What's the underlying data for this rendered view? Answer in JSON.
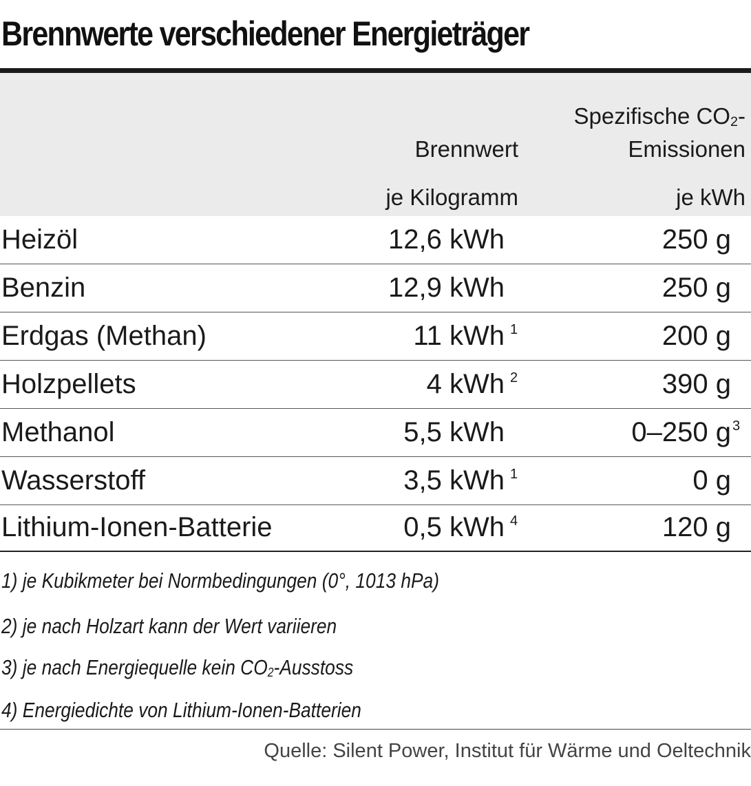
{
  "title": "Brennwerte verschiedener Energieträger",
  "header": {
    "brennwert_label": "Brennwert",
    "brennwert_unit": "je Kilogramm",
    "co2_label_line1": "Spezifische CO",
    "co2_sub": "2",
    "co2_label_dash": "-",
    "co2_label_line2": "Emissionen",
    "co2_unit": "je kWh"
  },
  "rows": [
    {
      "name": "Heizöl",
      "brennwert": "12,6 kWh",
      "note": "",
      "co2": "250 g",
      "co2_note": ""
    },
    {
      "name": "Benzin",
      "brennwert": "12,9 kWh",
      "note": "",
      "co2": "250 g",
      "co2_note": ""
    },
    {
      "name": "Erdgas (Methan)",
      "brennwert": "11 kWh",
      "note": "1",
      "co2": "200 g",
      "co2_note": ""
    },
    {
      "name": "Holzpellets",
      "brennwert": "4 kWh",
      "note": "2",
      "co2": "390 g",
      "co2_note": ""
    },
    {
      "name": "Methanol",
      "brennwert": "5,5 kWh",
      "note": "",
      "co2": "0–250 g",
      "co2_note": "3"
    },
    {
      "name": "Wasserstoff",
      "brennwert": "3,5 kWh",
      "note": "1",
      "co2": "0 g",
      "co2_note": ""
    },
    {
      "name": "Lithium-Ionen-Batterie",
      "brennwert": "0,5 kWh",
      "note": "4",
      "co2": "120 g",
      "co2_note": ""
    }
  ],
  "footnotes": {
    "f1": "1) je Kubikmeter bei Normbedingungen (0°, 1013 hPa)",
    "f2": "2) je nach Holzart kann der Wert variieren",
    "f3_pre": "3) je nach Energiequelle kein CO",
    "f3_sub": "2",
    "f3_post": "-Ausstoss",
    "f4": "4) Energiedichte von Lithium-Ionen-Batterien"
  },
  "source": "Quelle: Silent Power, Institut für Wärme und Oeltechnik"
}
